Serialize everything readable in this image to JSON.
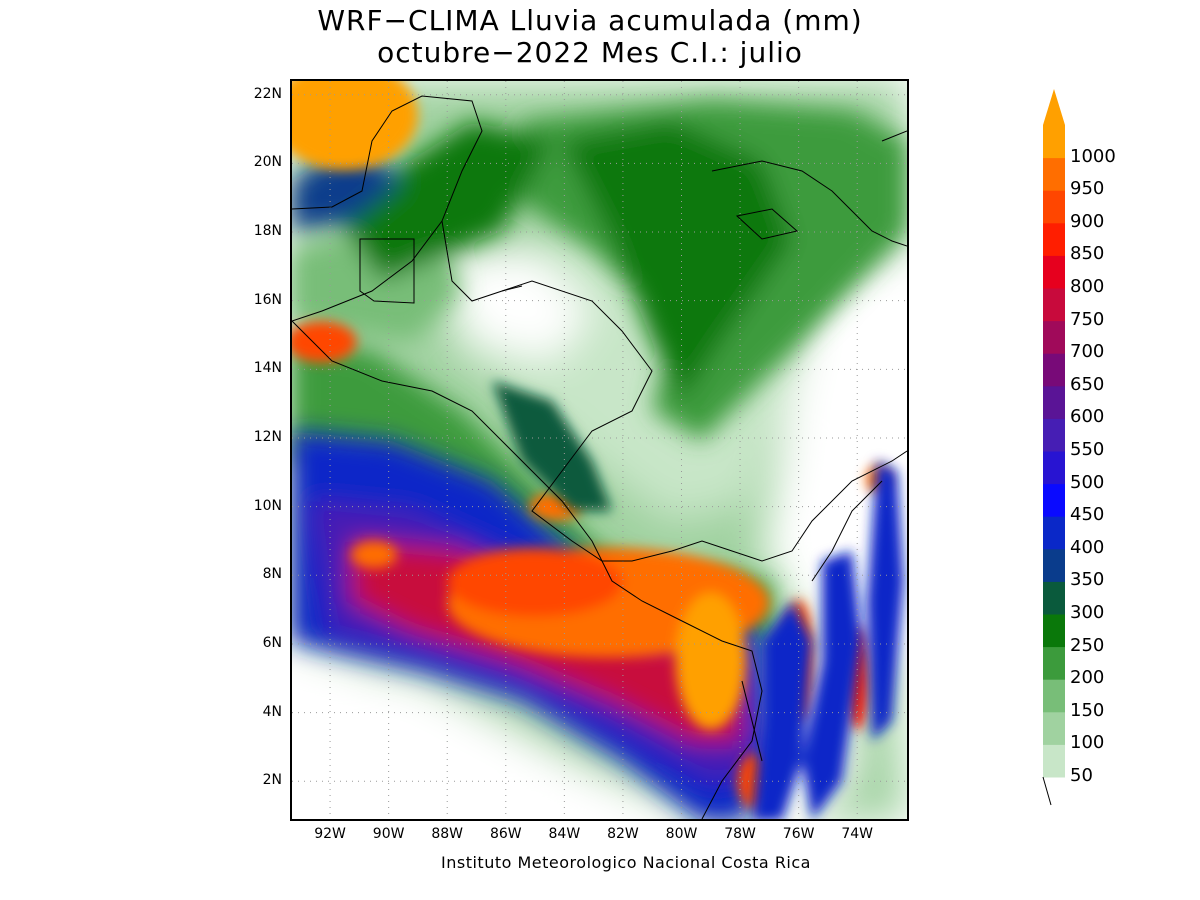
{
  "title": {
    "line1": "WRF−CLIMA Lluvia acumulada (mm)",
    "line2": "octubre−2022 Mes C.I.: julio"
  },
  "credit": "Instituto Meteorologico Nacional Costa Rica",
  "map": {
    "lon_range": [
      -93.3,
      -72.3
    ],
    "lat_range": [
      0.9,
      22.4
    ],
    "lat_ticks": [
      {
        "value": 22,
        "label": "22N"
      },
      {
        "value": 20,
        "label": "20N"
      },
      {
        "value": 18,
        "label": "18N"
      },
      {
        "value": 16,
        "label": "16N"
      },
      {
        "value": 14,
        "label": "14N"
      },
      {
        "value": 12,
        "label": "12N"
      },
      {
        "value": 10,
        "label": "10N"
      },
      {
        "value": 8,
        "label": "8N"
      },
      {
        "value": 6,
        "label": "6N"
      },
      {
        "value": 4,
        "label": "4N"
      },
      {
        "value": 2,
        "label": "2N"
      }
    ],
    "lon_ticks": [
      {
        "value": -92,
        "label": "92W"
      },
      {
        "value": -90,
        "label": "90W"
      },
      {
        "value": -88,
        "label": "88W"
      },
      {
        "value": -86,
        "label": "86W"
      },
      {
        "value": -84,
        "label": "84W"
      },
      {
        "value": -82,
        "label": "82W"
      },
      {
        "value": -80,
        "label": "80W"
      },
      {
        "value": -78,
        "label": "78W"
      },
      {
        "value": -76,
        "label": "76W"
      },
      {
        "value": -74,
        "label": "74W"
      }
    ],
    "grid": "dotted"
  },
  "colorbar": {
    "levels": [
      "50",
      "100",
      "150",
      "200",
      "250",
      "300",
      "350",
      "400",
      "450",
      "500",
      "550",
      "600",
      "650",
      "700",
      "750",
      "800",
      "850",
      "900",
      "950",
      "1000"
    ],
    "colors": [
      "#c8e6c8",
      "#a0d2a0",
      "#78be78",
      "#3c9b3c",
      "#0a780a",
      "#0a5a3c",
      "#0a3c8c",
      "#0a28c8",
      "#0a0aff",
      "#2814d2",
      "#461eb4",
      "#5a1496",
      "#780a78",
      "#a00a5a",
      "#c80a3c",
      "#e6001e",
      "#ff1e00",
      "#ff4600",
      "#ff6e00",
      "#ffa000"
    ],
    "extend_color": "#ffa000"
  },
  "rain_regions": [
    {
      "lon": -82.5,
      "lat": 7.2,
      "rx": 5.5,
      "ry": 1.6,
      "level": 18
    },
    {
      "lon": -79.0,
      "lat": 5.5,
      "rx": 1.2,
      "ry": 2.0,
      "level": 19
    },
    {
      "lon": -85.0,
      "lat": 7.8,
      "rx": 3.0,
      "ry": 1.0,
      "level": 17
    },
    {
      "lon": -90.5,
      "lat": 8.6,
      "rx": 0.8,
      "ry": 0.4,
      "level": 18
    },
    {
      "lon": -91.5,
      "lat": 21.4,
      "rx": 2.5,
      "ry": 1.6,
      "level": 19
    },
    {
      "lon": -84.3,
      "lat": 10.0,
      "rx": 0.9,
      "ry": 0.4,
      "level": 18
    },
    {
      "lon": -76.0,
      "lat": 5.5,
      "rx": 0.5,
      "ry": 1.8,
      "level": 17
    },
    {
      "lon": -77.5,
      "lat": 2.0,
      "rx": 0.6,
      "ry": 0.8,
      "level": 17
    },
    {
      "lon": -74.0,
      "lat": 5.0,
      "rx": 0.4,
      "ry": 1.5,
      "level": 16
    },
    {
      "lon": -73.3,
      "lat": 10.8,
      "rx": 0.4,
      "ry": 0.4,
      "level": 18
    },
    {
      "lon": -92.3,
      "lat": 14.8,
      "rx": 1.2,
      "ry": 0.6,
      "level": 17
    }
  ]
}
